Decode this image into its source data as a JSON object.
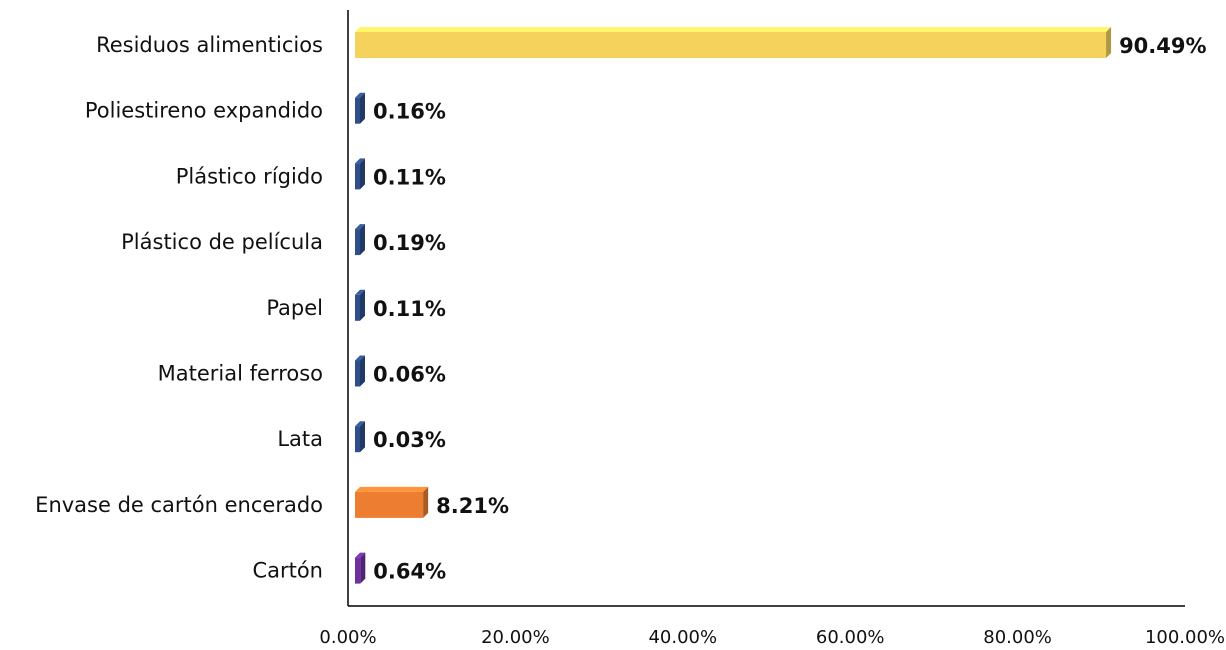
{
  "chart_data": {
    "type": "bar",
    "orientation": "horizontal",
    "categories": [
      "Residuos alimenticios",
      "Poliestireno expandido",
      "Plástico rígido",
      "Plástico de película",
      "Papel",
      "Material ferroso",
      "Lata",
      "Envase de cartón encerado",
      "Cartón"
    ],
    "values": [
      90.49,
      0.16,
      0.11,
      0.19,
      0.11,
      0.06,
      0.03,
      8.21,
      0.64
    ],
    "value_labels": [
      "90.49%",
      "0.16%",
      "0.11%",
      "0.19%",
      "0.11%",
      "0.06%",
      "0.03%",
      "8.21%",
      "0.64%"
    ],
    "colors": [
      "#f5d25c",
      "#2e4f8c",
      "#2e4f8c",
      "#2e4f8c",
      "#2e4f8c",
      "#2e4f8c",
      "#2e4f8c",
      "#ed7d31",
      "#7030a0"
    ],
    "xlim": [
      0,
      100
    ],
    "xticks": [
      0,
      20,
      40,
      60,
      80,
      100
    ],
    "xtick_labels": [
      "0.00%",
      "20.00%",
      "40.00%",
      "60.00%",
      "80.00%",
      "100.00%"
    ],
    "title": "",
    "xlabel": "",
    "ylabel": "",
    "grid": false,
    "legend": "none",
    "style": "3d-bar"
  }
}
